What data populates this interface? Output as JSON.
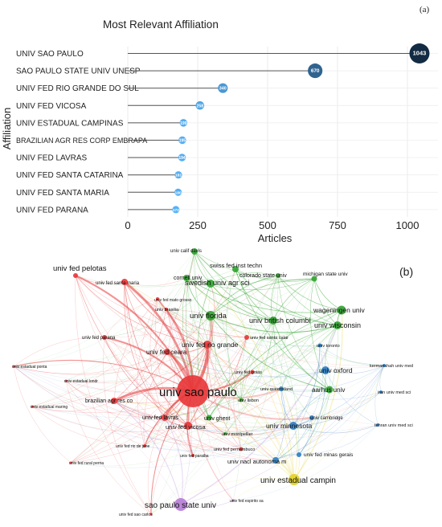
{
  "chart_data": [
    {
      "type": "lollipop",
      "panel_label": "(a)",
      "title": "Most Relevant Affiliation",
      "xlabel": "Articles",
      "ylabel": "Affiliation",
      "xlim": [
        0,
        1100
      ],
      "xticks": [
        "0",
        "250",
        "500",
        "750",
        "1000"
      ],
      "tick_values": [
        0,
        250,
        500,
        750,
        1000
      ],
      "categories": [
        "UNIV SAO PAULO",
        "SAO PAULO STATE UNIV UNESP",
        "UNIV FED RIO GRANDE DO SUL",
        "UNIV FED VICOSA",
        "UNIV ESTADUAL CAMPINAS",
        "BRAZILIAN AGR RES CORP EMBRAPA",
        "UNIV FED LAVRAS",
        "UNIV FED SANTA CATARINA",
        "UNIV FED SANTA MARIA",
        "UNIV FED PARANA"
      ],
      "values": [
        1043,
        670,
        340,
        258,
        199,
        195,
        194,
        181,
        180,
        172
      ],
      "value_labels": [
        "1043",
        "670",
        "340",
        "258",
        "199",
        "195",
        "194",
        "181",
        "180",
        "172"
      ],
      "color_scale": [
        "#56b1f7",
        "#132b43"
      ]
    },
    {
      "type": "network",
      "panel_label": "(b)",
      "clusters": {
        "red": "#e8383b",
        "green": "#33a532",
        "blue": "#2f7fc6",
        "yellow": "#e3d229",
        "purple": "#b57fd6"
      },
      "nodes": [
        {
          "label": "univ sao paulo",
          "cluster": "red",
          "size": 20,
          "font": 15
        },
        {
          "label": "sao paulo state univ",
          "cluster": "purple",
          "size": 8,
          "font": 10
        },
        {
          "label": "univ estadual campin",
          "cluster": "yellow",
          "size": 7,
          "font": 10
        },
        {
          "label": "univ fed pelotas",
          "cluster": "red",
          "size": 3,
          "font": 9.5
        },
        {
          "label": "univ fed santa maria",
          "cluster": "red",
          "size": 4,
          "font": 6
        },
        {
          "label": "univ fed mato grosso",
          "cluster": "red",
          "size": 2,
          "font": 5
        },
        {
          "label": "univ fed parana",
          "cluster": "red",
          "size": 3,
          "font": 6
        },
        {
          "label": "univ estadual ponta",
          "cluster": "red",
          "size": 1.5,
          "font": 5
        },
        {
          "label": "univ estadual londr",
          "cluster": "red",
          "size": 1.5,
          "font": 5
        },
        {
          "label": "univ estadual maring",
          "cluster": "red",
          "size": 1.5,
          "font": 5
        },
        {
          "label": "brazilian agr res co",
          "cluster": "red",
          "size": 4,
          "font": 7
        },
        {
          "label": "univ fed lavras",
          "cluster": "red",
          "size": 4,
          "font": 7
        },
        {
          "label": "univ fed vicosa",
          "cluster": "red",
          "size": 5,
          "font": 7.5
        },
        {
          "label": "univ fed rural perna",
          "cluster": "red",
          "size": 1.5,
          "font": 5
        },
        {
          "label": "univ fed sao carlos",
          "cluster": "red",
          "size": 1.5,
          "font": 5
        },
        {
          "label": "univ fed ceara",
          "cluster": "red",
          "size": 4,
          "font": 8
        },
        {
          "label": "univ fed rio grande",
          "cluster": "red",
          "size": 5,
          "font": 8.5
        },
        {
          "label": "univ fed santa catar",
          "cluster": "red",
          "size": 3,
          "font": 5.5
        },
        {
          "label": "univ fed goias",
          "cluster": "red",
          "size": 2.5,
          "font": 5.5
        },
        {
          "label": "univ fed pernambuco",
          "cluster": "red",
          "size": 2.5,
          "font": 5.5
        },
        {
          "label": "univ fed paraiba",
          "cluster": "red",
          "size": 2,
          "font": 5
        },
        {
          "label": "univ fed rio de jane",
          "cluster": "red",
          "size": 2,
          "font": 5
        },
        {
          "label": "univ fed espirito sa",
          "cluster": "purple",
          "size": 1.5,
          "font": 5
        },
        {
          "label": "univ fed minas gerais",
          "cluster": "blue",
          "size": 3,
          "font": 6.5
        },
        {
          "label": "univ nacl autonoma m",
          "cluster": "blue",
          "size": 4,
          "font": 7.5
        },
        {
          "label": "univ montpellier",
          "cluster": "green",
          "size": 2,
          "font": 5.5
        },
        {
          "label": "univ brasilia",
          "cluster": "red",
          "size": 2,
          "font": 5.5
        },
        {
          "label": "univ calif davis",
          "cluster": "green",
          "size": 4,
          "font": 6
        },
        {
          "label": "swiss fed inst techn",
          "cluster": "green",
          "size": 4,
          "font": 7.5
        },
        {
          "label": "cornell univ",
          "cluster": "green",
          "size": 4,
          "font": 7
        },
        {
          "label": "colorado state univ",
          "cluster": "green",
          "size": 3,
          "font": 7
        },
        {
          "label": "swedish univ agr sci",
          "cluster": "green",
          "size": 5,
          "font": 9
        },
        {
          "label": "michigan state univ",
          "cluster": "green",
          "size": 3.5,
          "font": 6.5
        },
        {
          "label": "univ florida",
          "cluster": "green",
          "size": 6,
          "font": 9.5
        },
        {
          "label": "wageningen univ",
          "cluster": "green",
          "size": 5.5,
          "font": 8.5
        },
        {
          "label": "univ british columbi",
          "cluster": "green",
          "size": 5,
          "font": 9
        },
        {
          "label": "univ wisconsin",
          "cluster": "green",
          "size": 5,
          "font": 9
        },
        {
          "label": "univ oxford",
          "cluster": "blue",
          "size": 5,
          "font": 8.5
        },
        {
          "label": "aarhus univ",
          "cluster": "green",
          "size": 4.5,
          "font": 8
        },
        {
          "label": "univ queensland",
          "cluster": "blue",
          "size": 3,
          "font": 5.5
        },
        {
          "label": "univ lisbon",
          "cluster": "green",
          "size": 2.5,
          "font": 5.5
        },
        {
          "label": "univ ghent",
          "cluster": "green",
          "size": 3.5,
          "font": 7
        },
        {
          "label": "univ minnesota",
          "cluster": "blue",
          "size": 5,
          "font": 8.5
        },
        {
          "label": "univ cambridge",
          "cluster": "blue",
          "size": 3,
          "font": 6
        },
        {
          "label": "univ toronto",
          "cluster": "blue",
          "size": 2.5,
          "font": 5.5
        },
        {
          "label": "kermanshah univ med",
          "cluster": "blue",
          "size": 2,
          "font": 5.5
        },
        {
          "label": "iran univ med sci",
          "cluster": "blue",
          "size": 2,
          "font": 5.5
        },
        {
          "label": "tehran univ med sci",
          "cluster": "blue",
          "size": 2,
          "font": 5.5
        }
      ]
    }
  ]
}
